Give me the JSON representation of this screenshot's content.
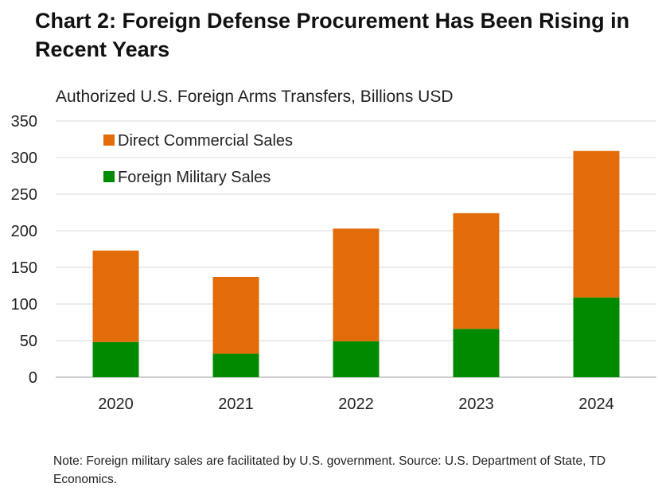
{
  "title": "Chart 2: Foreign Defense Procurement Has Been Rising in Recent Years",
  "subtitle": "Authorized U.S. Foreign Arms Transfers, Billions USD",
  "note": "Note: Foreign military sales are facilitated by U.S. government. Source: U.S. Department of State, TD Economics.",
  "colors": {
    "dcs": "#E36C0A",
    "fms": "#008A00",
    "grid": "#D9D9D9",
    "axis": "#BFBFBF"
  },
  "chart_data": {
    "type": "bar",
    "stacked": true,
    "title": "Chart 2: Foreign Defense Procurement Has Been Rising in Recent Years",
    "subtitle": "Authorized U.S. Foreign Arms Transfers, Billions USD",
    "categories": [
      "2020",
      "2021",
      "2022",
      "2023",
      "2024"
    ],
    "series": [
      {
        "name": "Foreign Military Sales",
        "color": "#008A00",
        "values": [
          48,
          32,
          49,
          66,
          109
        ]
      },
      {
        "name": "Direct Commercial Sales",
        "color": "#E36C0A",
        "values": [
          125,
          105,
          154,
          158,
          200
        ]
      }
    ],
    "legend_order": [
      "Direct Commercial Sales",
      "Foreign Military Sales"
    ],
    "legend_position": "top-left",
    "ylim": [
      0,
      350
    ],
    "yticks": [
      "0",
      "50",
      "100",
      "150",
      "200",
      "250",
      "300",
      "350"
    ],
    "grid": true,
    "xlabel": "",
    "ylabel": ""
  }
}
